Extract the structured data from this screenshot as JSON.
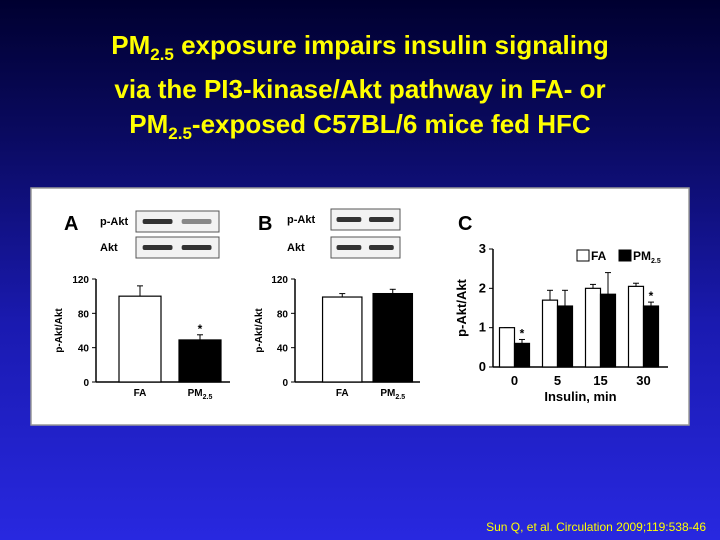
{
  "title": [
    [
      "PM",
      {
        "sub": "2.5"
      },
      " exposure impairs insulin signaling"
    ],
    [
      "via the PI3-kinase/Akt pathway in FA- or"
    ],
    [
      "PM",
      {
        "sub": "2.5"
      },
      "-exposed C57BL/6 mice fed HFC"
    ]
  ],
  "citation": "Sun Q, et al. Circulation 2009;119:538-46",
  "chart_data": [
    {
      "type": "bar",
      "panel": "A",
      "blots": [
        "p-Akt",
        "Akt"
      ],
      "ylabel": "p-Akt/Akt",
      "categories": [
        "FA",
        [
          "PM",
          {
            "sub": "2.5"
          }
        ]
      ],
      "series": [
        {
          "colors": [
            "#ffffff",
            "#000000"
          ],
          "values": [
            100,
            49
          ],
          "errors": [
            12,
            6
          ]
        }
      ],
      "annotations": [
        {
          "text": "*",
          "category": 1,
          "series": 0
        }
      ],
      "ylim": [
        0,
        120
      ],
      "yticks": [
        0,
        40,
        80,
        120
      ]
    },
    {
      "type": "bar",
      "panel": "B",
      "blots": [
        "p-Akt",
        "Akt"
      ],
      "ylabel": "p-Akt/Akt",
      "categories": [
        "FA",
        [
          "PM",
          {
            "sub": "2.5"
          }
        ]
      ],
      "series": [
        {
          "colors": [
            "#ffffff",
            "#000000"
          ],
          "values": [
            99,
            103
          ],
          "errors": [
            4,
            5
          ]
        }
      ],
      "ylim": [
        0,
        120
      ],
      "yticks": [
        0,
        40,
        80,
        120
      ]
    },
    {
      "type": "bar",
      "panel": "C",
      "ylabel": "p-Akt/Akt",
      "xlabel": "Insulin, min",
      "categories": [
        0,
        5,
        15,
        30
      ],
      "series": [
        {
          "name": "FA",
          "color": "#ffffff",
          "values": [
            1.0,
            1.7,
            2.0,
            2.05
          ],
          "errors": [
            0,
            0.25,
            0.1,
            0.08
          ]
        },
        {
          "name": [
            "PM",
            {
              "sub": "2.5"
            }
          ],
          "color": "#000000",
          "values": [
            0.6,
            1.55,
            1.85,
            1.55
          ],
          "errors": [
            0.1,
            0.4,
            0.55,
            0.1
          ]
        }
      ],
      "annotations": [
        {
          "text": "*",
          "category": 0,
          "series": 1
        },
        {
          "text": "*",
          "category": 3,
          "series": 1
        }
      ],
      "ylim": [
        0,
        3
      ],
      "yticks": [
        0,
        1,
        2,
        3
      ]
    }
  ]
}
